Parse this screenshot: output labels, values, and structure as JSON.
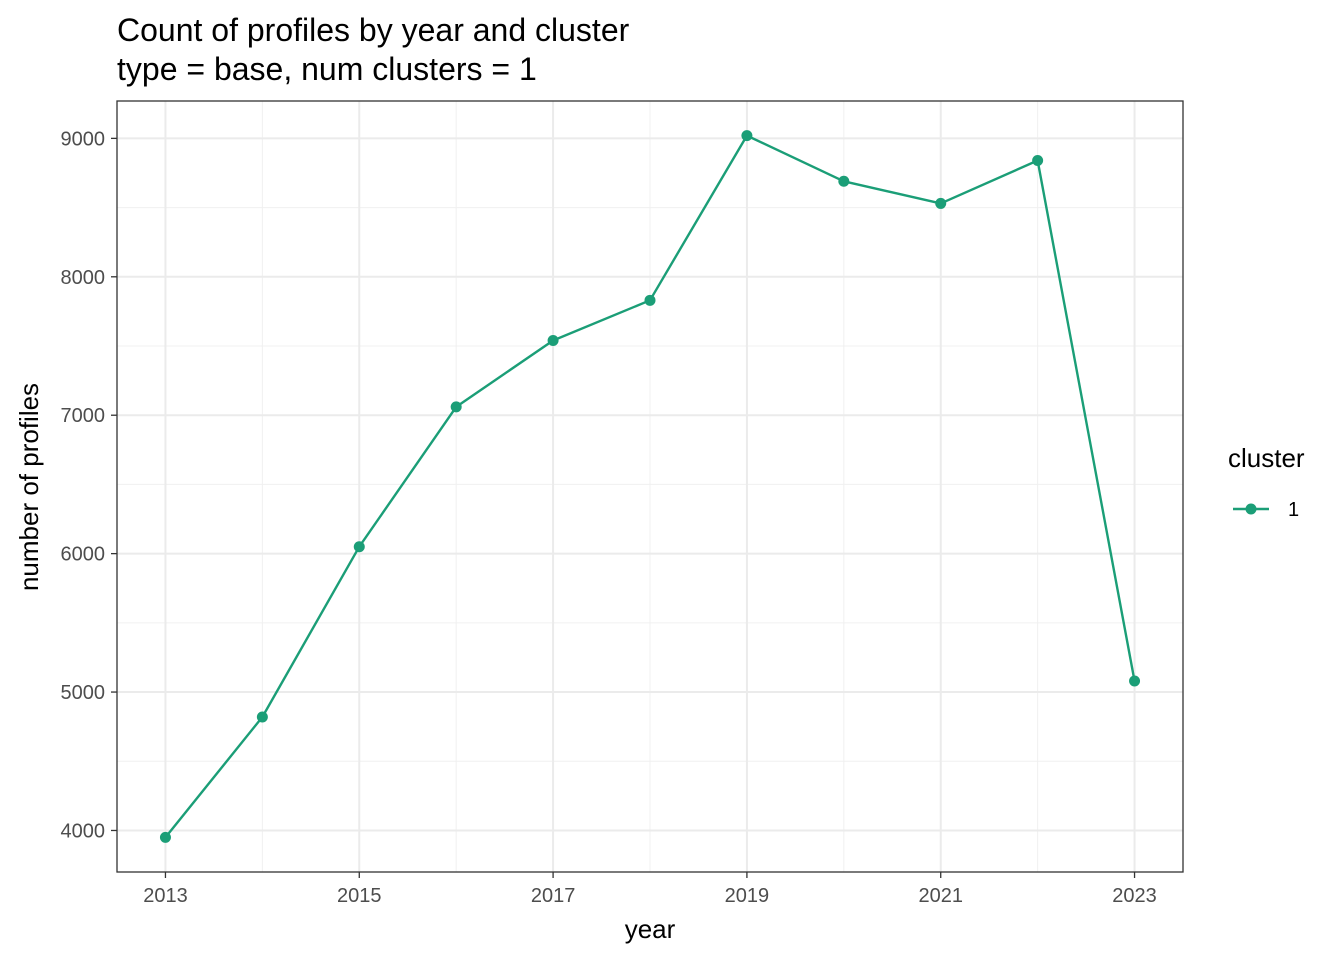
{
  "chart_data": {
    "type": "line",
    "title": "Count of profiles by year and cluster",
    "subtitle": "type = base, num clusters = 1",
    "xlabel": "year",
    "ylabel": "number of profiles",
    "x": [
      2013,
      2014,
      2015,
      2016,
      2017,
      2018,
      2019,
      2020,
      2021,
      2022,
      2023
    ],
    "series": [
      {
        "name": "1",
        "color": "#1b9e77",
        "values": [
          3950,
          4820,
          6050,
          7060,
          7540,
          7830,
          9020,
          8690,
          8530,
          8840,
          5080
        ]
      }
    ],
    "xlim": [
      2012.5,
      2023.5
    ],
    "ylim": [
      3700,
      9270
    ],
    "x_ticks": [
      "2013",
      "2015",
      "2017",
      "2019",
      "2021",
      "2023"
    ],
    "y_ticks": [
      "4000",
      "5000",
      "6000",
      "7000",
      "8000",
      "9000"
    ],
    "grid": true,
    "legend": {
      "title": "cluster",
      "placement": "right"
    }
  }
}
